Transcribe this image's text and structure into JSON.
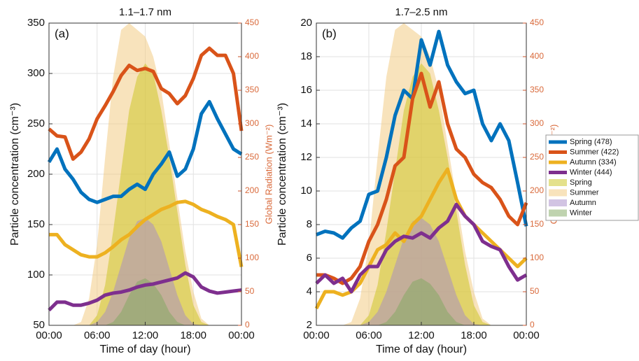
{
  "chart_data": [
    {
      "type": "line",
      "title": "1.1–1.7 nm",
      "panel_label": "(a)",
      "x_label": "Time of day (hour)",
      "y_label": "Particle concentration (cm⁻³)",
      "y2_label": "Global Radiation (Wm⁻²)",
      "x": [
        0,
        1,
        2,
        3,
        4,
        5,
        6,
        7,
        8,
        9,
        10,
        11,
        12,
        13,
        14,
        15,
        16,
        17,
        18,
        19,
        20,
        21,
        22,
        23,
        24
      ],
      "xlim": [
        0,
        24
      ],
      "xticks": [
        {
          "value": 0,
          "label": "00:00"
        },
        {
          "value": 6,
          "label": "06:00"
        },
        {
          "value": 12,
          "label": "12:00"
        },
        {
          "value": 18,
          "label": "18:00"
        },
        {
          "value": 24,
          "label": "00:00"
        }
      ],
      "ylim": [
        50,
        350
      ],
      "yticks": [
        50,
        100,
        150,
        200,
        250,
        300,
        350
      ],
      "y2lim": [
        0,
        450
      ],
      "y2ticks": [
        0,
        50,
        100,
        150,
        200,
        250,
        300,
        350,
        400,
        450
      ],
      "grid": true,
      "legend": "outside-right",
      "series": [
        {
          "name": "Spring (478)",
          "color": "#0072bd",
          "values": [
            212,
            225,
            205,
            195,
            182,
            175,
            172,
            175,
            178,
            178,
            185,
            190,
            185,
            200,
            210,
            222,
            198,
            205,
            225,
            260,
            272,
            255,
            240,
            225,
            220
          ]
        },
        {
          "name": "Summer (422)",
          "color": "#d95319",
          "values": [
            245,
            238,
            237,
            215,
            222,
            235,
            255,
            268,
            282,
            298,
            308,
            303,
            305,
            302,
            285,
            280,
            270,
            278,
            295,
            318,
            325,
            318,
            318,
            300,
            243
          ]
        },
        {
          "name": "Autumn (334)",
          "color": "#edb120",
          "values": [
            140,
            140,
            130,
            125,
            120,
            118,
            118,
            122,
            128,
            135,
            140,
            148,
            155,
            160,
            165,
            168,
            172,
            173,
            170,
            165,
            162,
            158,
            155,
            150,
            108
          ]
        },
        {
          "name": "Winter (444)",
          "color": "#7e2f8e",
          "values": [
            65,
            73,
            73,
            70,
            70,
            72,
            75,
            80,
            82,
            83,
            85,
            88,
            90,
            91,
            93,
            95,
            97,
            102,
            98,
            88,
            84,
            82,
            83,
            84,
            85
          ]
        },
        {
          "name": "Spring",
          "type": "area",
          "axis": "y2",
          "color": "#c9c41a",
          "values": [
            0,
            0,
            0,
            0,
            0,
            0,
            15,
            60,
            140,
            230,
            320,
            370,
            390,
            375,
            320,
            250,
            170,
            90,
            30,
            5,
            0,
            0,
            0,
            0,
            0
          ]
        },
        {
          "name": "Summer",
          "type": "area",
          "axis": "y2",
          "color": "#f2c77a",
          "values": [
            0,
            0,
            0,
            0,
            5,
            40,
            120,
            250,
            370,
            440,
            450,
            440,
            430,
            400,
            350,
            270,
            190,
            110,
            50,
            10,
            0,
            0,
            0,
            0,
            0
          ]
        },
        {
          "name": "Autumn",
          "type": "area",
          "axis": "y2",
          "color": "#a68ac8",
          "values": [
            0,
            0,
            0,
            0,
            0,
            0,
            5,
            20,
            50,
            90,
            130,
            155,
            160,
            150,
            125,
            85,
            45,
            15,
            2,
            0,
            0,
            0,
            0,
            0,
            0
          ]
        },
        {
          "name": "Winter",
          "type": "area",
          "axis": "y2",
          "color": "#7fa860",
          "values": [
            0,
            0,
            0,
            0,
            0,
            0,
            0,
            0,
            5,
            20,
            45,
            65,
            70,
            62,
            45,
            20,
            5,
            0,
            0,
            0,
            0,
            0,
            0,
            0,
            0
          ]
        }
      ]
    },
    {
      "type": "line",
      "title": "1.7–2.5 nm",
      "panel_label": "(b)",
      "x_label": "Time of day (hour)",
      "y_label": "Particle concentration (cm⁻³)",
      "y2_label": "Global Radiation (Wm⁻²)",
      "x": [
        0,
        1,
        2,
        3,
        4,
        5,
        6,
        7,
        8,
        9,
        10,
        11,
        12,
        13,
        14,
        15,
        16,
        17,
        18,
        19,
        20,
        21,
        22,
        23,
        24
      ],
      "xlim": [
        0,
        24
      ],
      "xticks": [
        {
          "value": 0,
          "label": "00:00"
        },
        {
          "value": 6,
          "label": "06:00"
        },
        {
          "value": 12,
          "label": "12:00"
        },
        {
          "value": 18,
          "label": "18:00"
        },
        {
          "value": 24,
          "label": "00:00"
        }
      ],
      "ylim": [
        2,
        20
      ],
      "yticks": [
        2,
        4,
        6,
        8,
        10,
        12,
        14,
        16,
        18,
        20
      ],
      "y2lim": [
        0,
        450
      ],
      "y2ticks": [
        0,
        50,
        100,
        150,
        200,
        250,
        300,
        350,
        400,
        450
      ],
      "grid": true,
      "series": [
        {
          "color": "#0072bd",
          "values": [
            7.4,
            7.6,
            7.5,
            7.2,
            7.8,
            8.2,
            9.8,
            10,
            12,
            14.5,
            16,
            15.5,
            19,
            17.5,
            19.5,
            17.5,
            16.5,
            15.8,
            16,
            14,
            13,
            14,
            13,
            10.5,
            7.9
          ]
        },
        {
          "color": "#d95319",
          "values": [
            5,
            5,
            4.8,
            4.5,
            4.8,
            5.5,
            7,
            8,
            9.5,
            11.5,
            12,
            15.5,
            17,
            15,
            16.5,
            14,
            12.5,
            12,
            11,
            10.5,
            10.2,
            9.5,
            8.5,
            8,
            9.3
          ]
        },
        {
          "color": "#edb120",
          "values": [
            3,
            4,
            4,
            3.8,
            4,
            4.5,
            5.5,
            6.5,
            6.8,
            7.5,
            7,
            8,
            8.5,
            9.5,
            10.5,
            11.3,
            9.5,
            8.5,
            8,
            7.5,
            7,
            6.5,
            6,
            5.5,
            6
          ]
        },
        {
          "color": "#7e2f8e",
          "values": [
            4.5,
            5,
            4.5,
            4.8,
            4,
            5,
            5.5,
            5.5,
            6.5,
            7,
            7.3,
            7.2,
            7.5,
            7.2,
            7.8,
            8.2,
            9.2,
            8.5,
            8,
            7,
            6.7,
            6.5,
            5.5,
            4.7,
            5
          ]
        },
        {
          "type": "area",
          "axis": "y2",
          "color": "#c9c41a",
          "values": [
            0,
            0,
            0,
            0,
            0,
            0,
            15,
            60,
            140,
            230,
            320,
            370,
            390,
            375,
            320,
            250,
            170,
            90,
            30,
            5,
            0,
            0,
            0,
            0,
            0
          ]
        },
        {
          "type": "area",
          "axis": "y2",
          "color": "#f2c77a",
          "values": [
            0,
            0,
            0,
            0,
            5,
            40,
            120,
            250,
            370,
            440,
            450,
            440,
            430,
            400,
            350,
            270,
            190,
            110,
            50,
            10,
            0,
            0,
            0,
            0,
            0
          ]
        },
        {
          "type": "area",
          "axis": "y2",
          "color": "#a68ac8",
          "values": [
            0,
            0,
            0,
            0,
            0,
            0,
            5,
            20,
            50,
            90,
            130,
            155,
            160,
            150,
            125,
            85,
            45,
            15,
            2,
            0,
            0,
            0,
            0,
            0,
            0
          ]
        },
        {
          "type": "area",
          "axis": "y2",
          "color": "#7fa860",
          "values": [
            0,
            0,
            0,
            0,
            0,
            0,
            0,
            0,
            5,
            20,
            45,
            65,
            70,
            62,
            45,
            20,
            5,
            0,
            0,
            0,
            0,
            0,
            0,
            0,
            0
          ]
        }
      ]
    }
  ]
}
